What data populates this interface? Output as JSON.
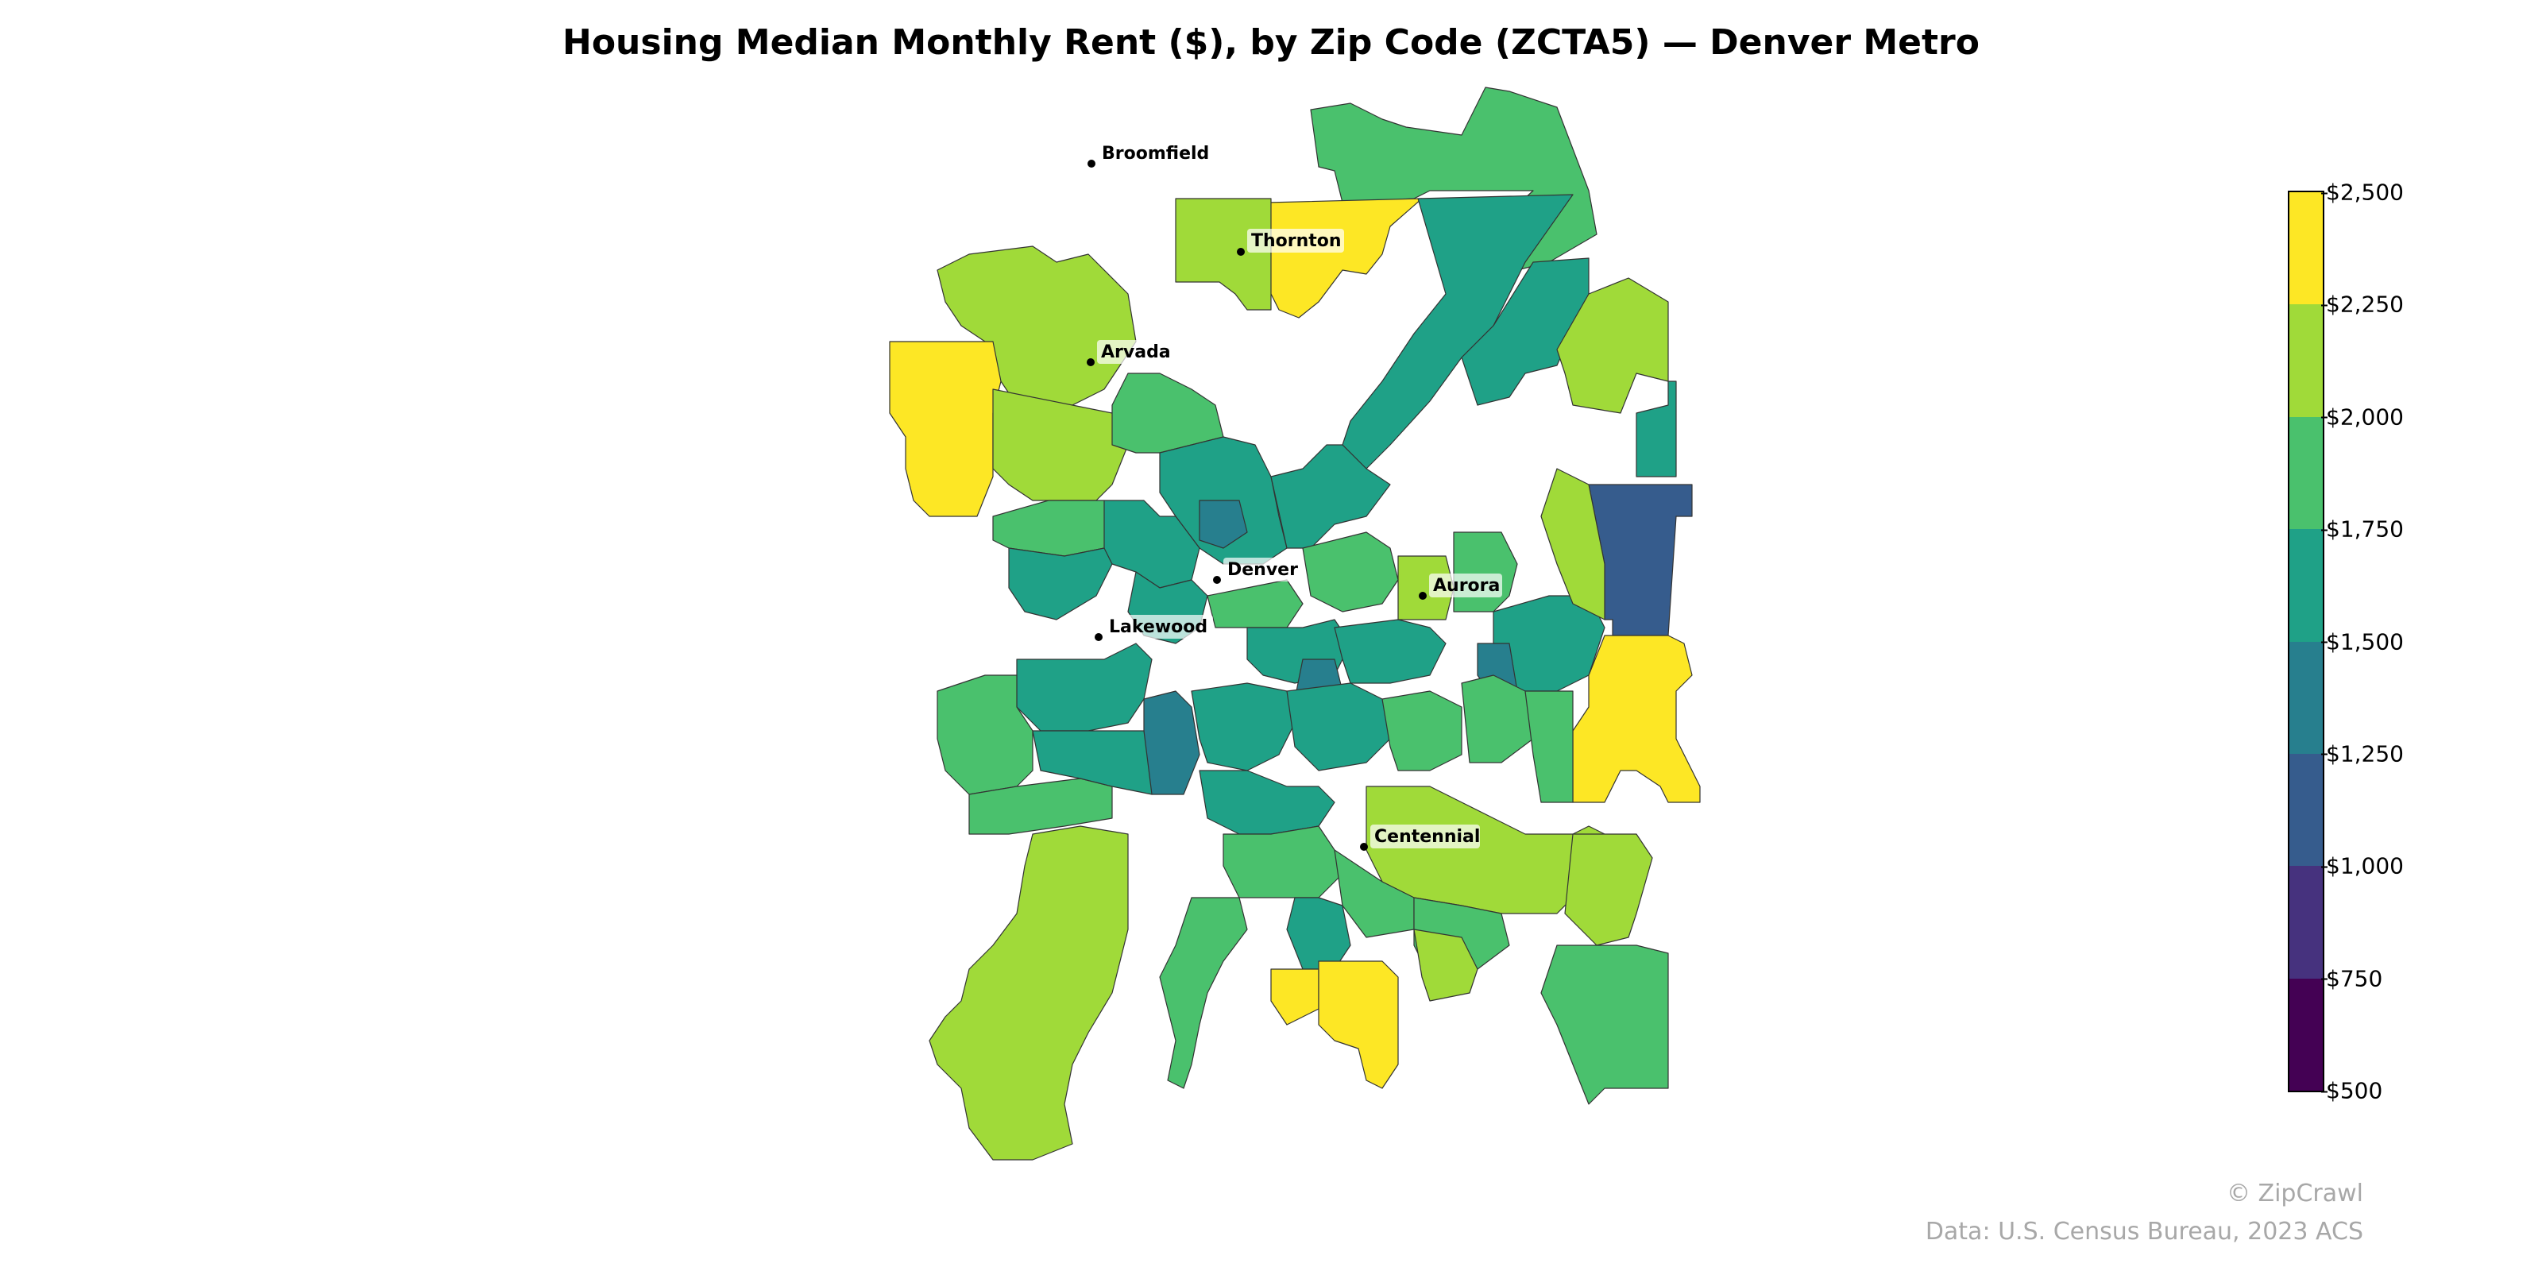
{
  "title": "Housing Median Monthly Rent ($), by Zip Code (ZCTA5) — Denver Metro",
  "cities": [
    {
      "name": "Broomfield"
    },
    {
      "name": "Thornton"
    },
    {
      "name": "Arvada"
    },
    {
      "name": "Denver"
    },
    {
      "name": "Aurora"
    },
    {
      "name": "Lakewood"
    },
    {
      "name": "Centennial"
    }
  ],
  "legend": {
    "ticks": [
      "$2,500",
      "$2,250",
      "$2,000",
      "$1,750",
      "$1,500",
      "$1,250",
      "$1,000",
      "$750",
      "$500"
    ],
    "bins": [
      {
        "range": "2250-2500",
        "color": "#fde725"
      },
      {
        "range": "2000-2250",
        "color": "#a0da39"
      },
      {
        "range": "1750-2000",
        "color": "#4ac16d"
      },
      {
        "range": "1500-1750",
        "color": "#1fa187"
      },
      {
        "range": "1250-1500",
        "color": "#277f8e"
      },
      {
        "range": "1000-1250",
        "color": "#365c8d"
      },
      {
        "range": "750-1000",
        "color": "#46327e"
      },
      {
        "range": "500-750",
        "color": "#440154"
      }
    ]
  },
  "credits": {
    "brand": "© ZipCrawl",
    "source": "Data: U.S. Census Bureau, 2023 ACS"
  }
}
